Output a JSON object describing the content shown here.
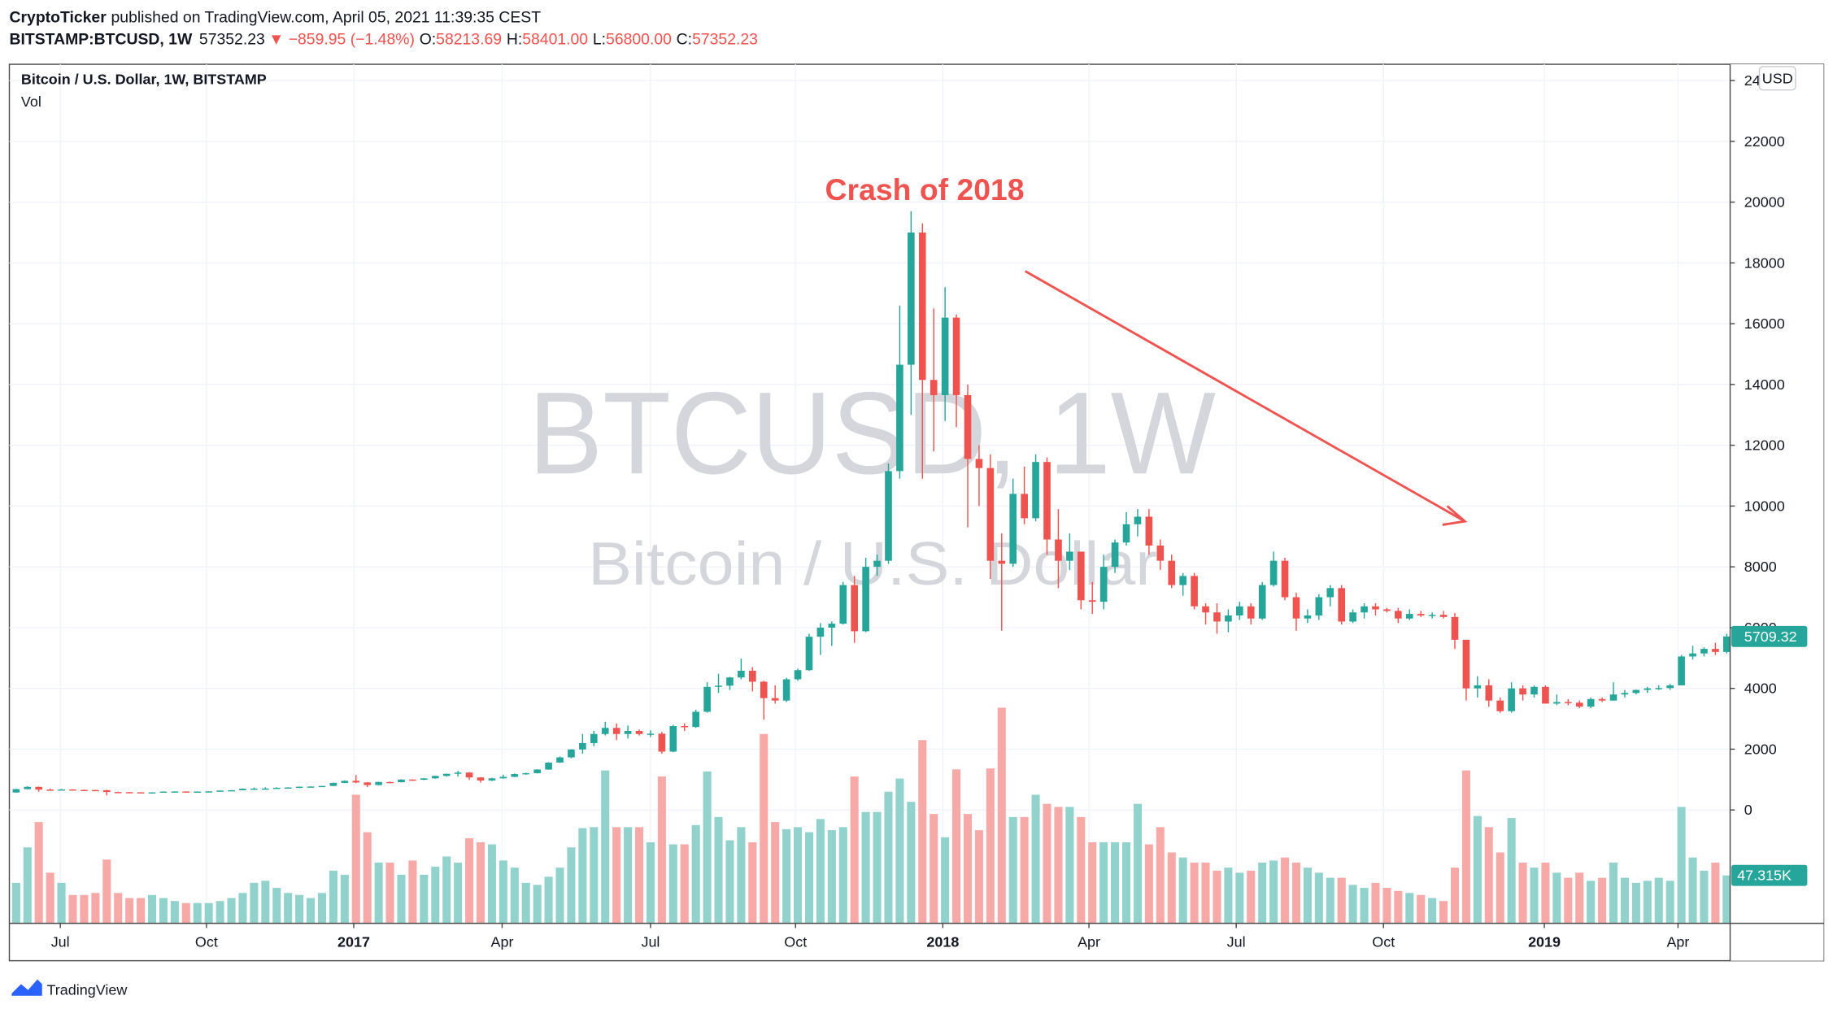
{
  "header": {
    "author": "CryptoTicker",
    "published": "published on TradingView.com, April 05, 2021 11:39:35 CEST",
    "symbol": "BITSTAMP:BTCUSD, 1W",
    "price": "57352.23",
    "change": "▼ −859.95 (−1.48%)",
    "ohlc": [
      {
        "label": "O:",
        "value": "58213.69"
      },
      {
        "label": "H:",
        "value": "58401.00"
      },
      {
        "label": "L:",
        "value": "56800.00"
      },
      {
        "label": "C:",
        "value": "57352.23"
      }
    ]
  },
  "chart_data": {
    "type": "candlestick",
    "title": "Bitcoin / U.S. Dollar, 1W, BITSTAMP",
    "volume_label": "Vol",
    "watermark": [
      "BTCUSD, 1W",
      "Bitcoin / U.S. Dollar"
    ],
    "annotation": "Crash of 2018",
    "currency": "USD",
    "up_color": "#26a69a",
    "down_color": "#ef5350",
    "up_volume_color": "#92d2cc",
    "down_volume_color": "#f7a9a7",
    "grid": true,
    "ylim": [
      -3730,
      24420
    ],
    "yticks": [
      0,
      2000,
      4000,
      6000,
      8000,
      10000,
      12000,
      14000,
      16000,
      18000,
      20000,
      22000,
      24000
    ],
    "xlim": [
      -0.6,
      151.3
    ],
    "xticks": [
      {
        "value": 3.9,
        "label": "Jul"
      },
      {
        "value": 16.8,
        "label": "Oct"
      },
      {
        "value": 29.8,
        "label": "2017"
      },
      {
        "value": 42.9,
        "label": "Apr"
      },
      {
        "value": 56.0,
        "label": "Jul"
      },
      {
        "value": 68.8,
        "label": "Oct"
      },
      {
        "value": 81.8,
        "label": "2018"
      },
      {
        "value": 94.7,
        "label": "Apr"
      },
      {
        "value": 107.7,
        "label": "Jul"
      },
      {
        "value": 120.7,
        "label": "Oct"
      },
      {
        "value": 134.9,
        "label": "2019"
      },
      {
        "value": 146.7,
        "label": "Apr"
      }
    ],
    "vlim": [
      0,
      845
    ],
    "open": [
      575,
      685,
      760,
      670,
      660,
      675,
      660,
      655,
      652,
      590,
      585,
      580,
      575,
      578,
      605,
      607,
      603,
      605,
      612,
      638,
      650,
      700,
      702,
      705,
      730,
      740,
      765,
      770,
      790,
      890,
      960,
      905,
      820,
      920,
      915,
      1000,
      995,
      1040,
      1120,
      1190,
      1230,
      1070,
      970,
      1040,
      1090,
      1180,
      1210,
      1330,
      1560,
      1730,
      1990,
      2200,
      2500,
      2700,
      2500,
      2600,
      2500,
      2510,
      1920,
      2760,
      2730,
      3230,
      4050,
      4090,
      4360,
      4580,
      4220,
      3680,
      3600,
      4300,
      4600,
      5700,
      6000,
      6130,
      7400,
      5880,
      8000,
      8200,
      11150,
      14650,
      19000,
      14150,
      13650,
      16200,
      13650,
      11550,
      11250,
      8200,
      8100,
      10400,
      9600,
      11450,
      8900,
      8200,
      8500,
      6900,
      6850,
      8000,
      8800,
      9400,
      9650,
      8700,
      8200,
      7400,
      7700,
      6700,
      6500,
      6200,
      6400,
      6700,
      6300,
      7400,
      8200,
      7000,
      6300,
      6400,
      7000,
      7300,
      6200,
      6500,
      6700,
      6600,
      6550,
      6300,
      6450,
      6400,
      6420,
      6350,
      5600,
      4000,
      4100,
      3600,
      3250,
      4000,
      3800,
      4050,
      3500,
      3550,
      3530,
      3400,
      3650,
      3600,
      3800,
      3850,
      3950,
      4000,
      4010,
      4100,
      5050,
      5150,
      5300,
      5200
    ],
    "high": [
      700,
      780,
      770,
      700,
      690,
      680,
      670,
      665,
      660,
      600,
      595,
      585,
      585,
      612,
      612,
      612,
      610,
      615,
      642,
      655,
      710,
      740,
      745,
      745,
      745,
      770,
      780,
      792,
      900,
      975,
      1150,
      915,
      930,
      930,
      1010,
      1010,
      1045,
      1125,
      1195,
      1290,
      1250,
      1080,
      1060,
      1160,
      1200,
      1225,
      1340,
      1570,
      1760,
      2000,
      2500,
      2600,
      2900,
      2850,
      2780,
      2650,
      2620,
      2570,
      2800,
      2850,
      3300,
      4200,
      4480,
      4380,
      4980,
      4700,
      4250,
      4100,
      4350,
      4650,
      5800,
      6150,
      6200,
      7500,
      7700,
      8300,
      8400,
      11400,
      16600,
      19700,
      19300,
      16500,
      17200,
      16300,
      14000,
      12000,
      11700,
      9100,
      10900,
      11300,
      11700,
      11600,
      9900,
      9100,
      8500,
      7500,
      8400,
      8900,
      9800,
      9900,
      9900,
      8900,
      8400,
      7800,
      7800,
      6800,
      6800,
      6600,
      6850,
      6800,
      7500,
      8500,
      8300,
      7150,
      6600,
      7100,
      7400,
      7400,
      6600,
      6800,
      6800,
      6650,
      6650,
      6600,
      6550,
      6500,
      6550,
      6480,
      5600,
      4400,
      4300,
      3700,
      4200,
      4100,
      4100,
      4100,
      3800,
      3650,
      3600,
      3700,
      3700,
      4200,
      3950,
      3960,
      4050,
      4100,
      4150,
      5100,
      5400,
      5350,
      5500,
      5800
    ],
    "low": [
      570,
      680,
      600,
      640,
      650,
      645,
      640,
      645,
      480,
      565,
      565,
      565,
      570,
      575,
      600,
      595,
      595,
      600,
      610,
      630,
      648,
      690,
      690,
      700,
      725,
      720,
      755,
      765,
      785,
      885,
      880,
      750,
      810,
      880,
      905,
      960,
      980,
      1030,
      1100,
      1100,
      990,
      900,
      950,
      1030,
      1080,
      1160,
      1200,
      1320,
      1550,
      1700,
      1850,
      2100,
      2450,
      2300,
      2350,
      2450,
      2400,
      1850,
      1900,
      2600,
      2700,
      3200,
      3850,
      3950,
      4300,
      3900,
      2970,
      3500,
      3550,
      4250,
      4580,
      5100,
      5400,
      6100,
      5500,
      5850,
      7700,
      8100,
      10900,
      13000,
      10900,
      11800,
      12800,
      12600,
      9300,
      10000,
      7600,
      5900,
      8000,
      9400,
      9500,
      8400,
      7300,
      7900,
      6600,
      6450,
      6600,
      7800,
      8700,
      9000,
      8400,
      7900,
      7300,
      7050,
      6600,
      6100,
      5800,
      5850,
      6250,
      6100,
      6250,
      7350,
      6900,
      5900,
      6150,
      6250,
      6700,
      6100,
      6150,
      6300,
      6400,
      6500,
      6150,
      6250,
      6350,
      6300,
      6300,
      5300,
      3600,
      3700,
      3400,
      3200,
      3200,
      3600,
      3700,
      3500,
      3450,
      3450,
      3350,
      3350,
      3550,
      3600,
      3700,
      3800,
      3850,
      3950,
      3950,
      4100,
      4950,
      5050,
      5100,
      5150
    ],
    "close": [
      685,
      760,
      670,
      660,
      675,
      660,
      655,
      652,
      590,
      585,
      580,
      575,
      578,
      605,
      607,
      603,
      605,
      612,
      638,
      650,
      700,
      702,
      705,
      730,
      740,
      765,
      770,
      790,
      890,
      960,
      905,
      820,
      920,
      915,
      1000,
      995,
      1040,
      1120,
      1190,
      1230,
      1070,
      970,
      1040,
      1090,
      1180,
      1210,
      1330,
      1560,
      1730,
      1990,
      2200,
      2500,
      2700,
      2500,
      2600,
      2500,
      2510,
      1920,
      2760,
      2730,
      3230,
      4050,
      4090,
      4360,
      4580,
      4220,
      3680,
      3600,
      4300,
      4600,
      5700,
      6000,
      6130,
      7400,
      5880,
      8000,
      8200,
      11150,
      14650,
      19000,
      14150,
      13650,
      16200,
      13650,
      11550,
      11250,
      8200,
      8100,
      10400,
      9600,
      11450,
      8900,
      8200,
      8500,
      6900,
      6850,
      8000,
      8800,
      9400,
      9650,
      8700,
      8200,
      7400,
      7700,
      6700,
      6500,
      6200,
      6400,
      6700,
      6300,
      7400,
      8200,
      7000,
      6300,
      6400,
      7000,
      7300,
      6200,
      6500,
      6700,
      6600,
      6550,
      6300,
      6450,
      6400,
      6420,
      6350,
      5600,
      4000,
      4100,
      3600,
      3250,
      4000,
      3800,
      4050,
      3500,
      3550,
      3530,
      3400,
      3650,
      3600,
      3800,
      3850,
      3950,
      4000,
      4010,
      4100,
      5050,
      5150,
      5300,
      5200,
      5709.32
    ],
    "volume": [
      40,
      75,
      100,
      50,
      40,
      28,
      28,
      30,
      63,
      30,
      25,
      25,
      28,
      25,
      22,
      20,
      20,
      20,
      22,
      25,
      30,
      40,
      42,
      35,
      30,
      28,
      25,
      30,
      52,
      48,
      127,
      90,
      60,
      60,
      48,
      62,
      48,
      56,
      66,
      60,
      84,
      80,
      78,
      62,
      55,
      40,
      38,
      46,
      55,
      75,
      94,
      95,
      151,
      95,
      95,
      95,
      80,
      145,
      78,
      78,
      97,
      150,
      105,
      82,
      95,
      80,
      187,
      100,
      93,
      95,
      90,
      103,
      92,
      95,
      145,
      110,
      110,
      130,
      143,
      120,
      181,
      108,
      85,
      152,
      108,
      92,
      153,
      213,
      105,
      105,
      127,
      118,
      115,
      115,
      105,
      80,
      80,
      80,
      80,
      118,
      78,
      95,
      70,
      65,
      60,
      60,
      52,
      55,
      50,
      52,
      60,
      62,
      65,
      60,
      55,
      50,
      45,
      45,
      38,
      35,
      40,
      35,
      32,
      30,
      28,
      25,
      22,
      55,
      151,
      106,
      95,
      70,
      104,
      60,
      55,
      60,
      50,
      45,
      50,
      42,
      45,
      60,
      45,
      40,
      42,
      45,
      42,
      115,
      65,
      52,
      60,
      47.315
    ],
    "last_volume_label": "47.315K"
  },
  "footer": {
    "brand": "TradingView"
  }
}
